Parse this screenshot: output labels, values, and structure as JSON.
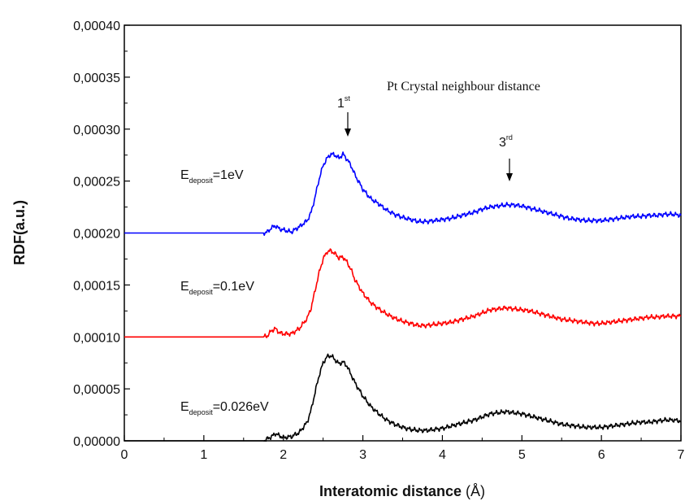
{
  "chart_data": {
    "type": "line",
    "xlabel": "Interatomic distance",
    "xlabel_unit": "(Å)",
    "ylabel": "RDF(a.u.)",
    "xlim": [
      0,
      7
    ],
    "ylim": [
      0,
      0.0004
    ],
    "x_ticks": [
      "0",
      "1",
      "2",
      "3",
      "4",
      "5",
      "6",
      "7"
    ],
    "y_ticks": [
      "0,00000",
      "0,00005",
      "0,00010",
      "0,00015",
      "0,00020",
      "0,00025",
      "0,00030",
      "0,00035",
      "0,00040"
    ],
    "grid": false,
    "annotations": {
      "title_text": "Pt Crystal neighbour distance",
      "first": {
        "main": "1",
        "sup": "st",
        "x": 2.78,
        "y": 0.0003
      },
      "third": {
        "main": "3",
        "sup": "rd",
        "x": 4.82,
        "y": 0.000255
      }
    },
    "series": [
      {
        "label_main": "E",
        "label_sub": "deposit",
        "label_value": "=1eV",
        "color": "#0000ff",
        "x": [
          0,
          1.75,
          1.8,
          1.85,
          1.9,
          1.95,
          2.0,
          2.1,
          2.2,
          2.3,
          2.35,
          2.4,
          2.45,
          2.5,
          2.55,
          2.6,
          2.65,
          2.7,
          2.75,
          2.8,
          2.85,
          2.9,
          3.0,
          3.1,
          3.2,
          3.3,
          3.4,
          3.5,
          3.6,
          3.7,
          3.8,
          3.9,
          4.0,
          4.1,
          4.2,
          4.3,
          4.4,
          4.5,
          4.6,
          4.7,
          4.8,
          4.9,
          5.0,
          5.1,
          5.2,
          5.3,
          5.4,
          5.5,
          5.6,
          5.7,
          5.8,
          5.9,
          6.0,
          6.1,
          6.2,
          6.3,
          6.4,
          6.5,
          6.6,
          6.7,
          6.8,
          6.9,
          7.0
        ],
        "y": [
          0.0002,
          0.0002,
          0.000201,
          0.000205,
          0.000207,
          0.000204,
          0.000203,
          0.000201,
          0.000206,
          0.000212,
          0.00022,
          0.000235,
          0.000252,
          0.000265,
          0.000272,
          0.000276,
          0.000275,
          0.000272,
          0.000276,
          0.000271,
          0.000265,
          0.000256,
          0.000242,
          0.000233,
          0.000228,
          0.000222,
          0.000218,
          0.000215,
          0.000213,
          0.000211,
          0.000211,
          0.000212,
          0.000213,
          0.000214,
          0.000216,
          0.000218,
          0.00022,
          0.000223,
          0.000225,
          0.000226,
          0.000227,
          0.000227,
          0.000226,
          0.000224,
          0.000222,
          0.00022,
          0.000218,
          0.000216,
          0.000214,
          0.000213,
          0.000212,
          0.000212,
          0.000212,
          0.000213,
          0.000214,
          0.000215,
          0.000216,
          0.000216,
          0.000217,
          0.000217,
          0.000218,
          0.000218,
          0.000217
        ]
      },
      {
        "label_main": "E",
        "label_sub": "deposit",
        "label_value": "=0.1eV",
        "color": "#ff0000",
        "x": [
          0,
          1.75,
          1.8,
          1.85,
          1.9,
          1.95,
          2.0,
          2.1,
          2.2,
          2.3,
          2.35,
          2.4,
          2.45,
          2.5,
          2.55,
          2.6,
          2.65,
          2.7,
          2.75,
          2.8,
          2.85,
          2.9,
          3.0,
          3.1,
          3.2,
          3.3,
          3.4,
          3.5,
          3.6,
          3.7,
          3.8,
          3.9,
          4.0,
          4.1,
          4.2,
          4.3,
          4.4,
          4.5,
          4.6,
          4.7,
          4.8,
          4.9,
          5.0,
          5.1,
          5.2,
          5.3,
          5.4,
          5.5,
          5.6,
          5.7,
          5.8,
          5.9,
          6.0,
          6.1,
          6.2,
          6.3,
          6.4,
          6.5,
          6.6,
          6.7,
          6.8,
          6.9,
          7.0
        ],
        "y": [
          0.0001,
          0.0001,
          0.000101,
          0.000106,
          0.000108,
          0.000104,
          0.000103,
          0.000103,
          0.000108,
          0.000118,
          0.000128,
          0.000145,
          0.000162,
          0.000175,
          0.000182,
          0.000183,
          0.00018,
          0.000176,
          0.000177,
          0.000172,
          0.000165,
          0.000155,
          0.000142,
          0.000133,
          0.000127,
          0.000122,
          0.000118,
          0.000115,
          0.000113,
          0.000111,
          0.000111,
          0.000112,
          0.000113,
          0.000114,
          0.000116,
          0.000118,
          0.00012,
          0.000123,
          0.000126,
          0.000127,
          0.000128,
          0.000127,
          0.000126,
          0.000125,
          0.000123,
          0.000121,
          0.000119,
          0.000117,
          0.000116,
          0.000115,
          0.000114,
          0.000113,
          0.000113,
          0.000114,
          0.000115,
          0.000116,
          0.000117,
          0.000118,
          0.000119,
          0.000119,
          0.00012,
          0.00012,
          0.00012
        ]
      },
      {
        "label_main": "E",
        "label_sub": "deposit",
        "label_value": "=0.026eV",
        "color": "#000000",
        "x": [
          0,
          1.75,
          1.8,
          1.85,
          1.9,
          1.95,
          2.0,
          2.1,
          2.2,
          2.3,
          2.35,
          2.4,
          2.45,
          2.5,
          2.55,
          2.6,
          2.65,
          2.7,
          2.75,
          2.8,
          2.85,
          2.9,
          3.0,
          3.1,
          3.2,
          3.3,
          3.4,
          3.5,
          3.6,
          3.7,
          3.8,
          3.9,
          4.0,
          4.1,
          4.2,
          4.3,
          4.4,
          4.5,
          4.6,
          4.7,
          4.8,
          4.9,
          5.0,
          5.1,
          5.2,
          5.3,
          5.4,
          5.5,
          5.6,
          5.7,
          5.8,
          5.9,
          6.0,
          6.1,
          6.2,
          6.3,
          6.4,
          6.5,
          6.6,
          6.7,
          6.8,
          6.9,
          7.0
        ],
        "y": [
          0,
          0,
          2e-06,
          4e-06,
          7e-06,
          5e-06,
          3e-06,
          4e-06,
          8e-06,
          1.8e-05,
          3e-05,
          4.7e-05,
          6.3e-05,
          7.5e-05,
          8.1e-05,
          8.2e-05,
          7.8e-05,
          7.4e-05,
          7.6e-05,
          7.2e-05,
          6.4e-05,
          5.6e-05,
          4.3e-05,
          3.3e-05,
          2.6e-05,
          2e-05,
          1.6e-05,
          1.3e-05,
          1.1e-05,
          1e-05,
          1e-05,
          1.1e-05,
          1.2e-05,
          1.4e-05,
          1.6e-05,
          1.8e-05,
          2e-05,
          2.3e-05,
          2.6e-05,
          2.7e-05,
          2.8e-05,
          2.7e-05,
          2.6e-05,
          2.4e-05,
          2.2e-05,
          2e-05,
          1.8e-05,
          1.6e-05,
          1.5e-05,
          1.4e-05,
          1.3e-05,
          1.3e-05,
          1.3e-05,
          1.4e-05,
          1.5e-05,
          1.6e-05,
          1.7e-05,
          1.8e-05,
          1.8e-05,
          1.9e-05,
          2e-05,
          2e-05,
          1.9e-05
        ]
      }
    ]
  }
}
